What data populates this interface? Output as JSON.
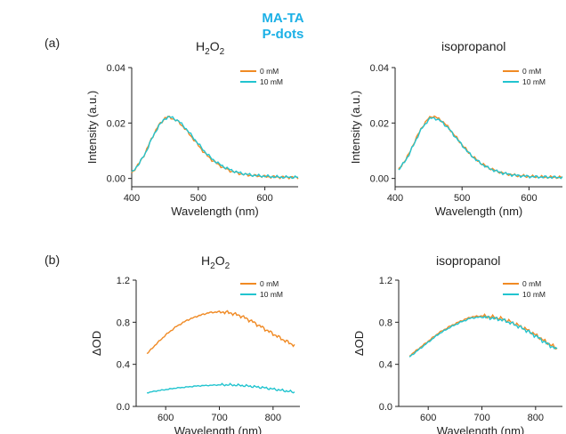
{
  "header": {
    "line1": "MA-TA",
    "line2": "P-dots"
  },
  "panel_labels": [
    "(a)",
    "(b)"
  ],
  "colors": {
    "orange": "#f08a24",
    "cyan": "#22c4cf",
    "header": "#1bb0e6",
    "green": "#a6d622"
  },
  "chart_data": [
    {
      "type": "line",
      "panel": "(a)",
      "title": "H2O2",
      "xlabel": "Wavelength (nm)",
      "ylabel": "Intensity (a.u.)",
      "xlim": [
        400,
        650
      ],
      "ylim": [
        -0.003,
        0.04
      ],
      "xticks": [
        400,
        500,
        600
      ],
      "xtick_labels": [
        "400",
        "500",
        "600"
      ],
      "yticks": [
        0.0,
        0.02,
        0.04
      ],
      "ytick_labels": [
        "0.00",
        "0.02",
        "0.04"
      ],
      "legend_position": "top-right",
      "x": [
        400,
        410,
        420,
        430,
        440,
        450,
        455,
        460,
        470,
        480,
        490,
        500,
        510,
        520,
        530,
        540,
        550,
        560,
        570,
        580,
        600,
        620,
        650
      ],
      "series": [
        {
          "name": "0 mM",
          "color": "orange",
          "values": [
            0.002,
            0.005,
            0.009,
            0.0145,
            0.019,
            0.0218,
            0.0222,
            0.0218,
            0.0205,
            0.018,
            0.015,
            0.012,
            0.009,
            0.0068,
            0.005,
            0.0036,
            0.0026,
            0.0019,
            0.0014,
            0.0011,
            0.0007,
            0.0005,
            0.0004
          ]
        },
        {
          "name": "10 mM",
          "color": "cyan",
          "values": [
            0.002,
            0.005,
            0.0088,
            0.0142,
            0.0188,
            0.0216,
            0.0222,
            0.022,
            0.0208,
            0.0184,
            0.0155,
            0.0125,
            0.0096,
            0.0072,
            0.0054,
            0.004,
            0.0029,
            0.0021,
            0.0016,
            0.0012,
            0.0008,
            0.0005,
            0.0004
          ]
        }
      ]
    },
    {
      "type": "line",
      "panel": "(a)",
      "title": "isopropanol",
      "xlabel": "Wavelength (nm)",
      "ylabel": "Intensity (a.u.)",
      "xlim": [
        400,
        650
      ],
      "ylim": [
        -0.003,
        0.04
      ],
      "xticks": [
        400,
        500,
        600
      ],
      "xtick_labels": [
        "400",
        "500",
        "600"
      ],
      "yticks": [
        0.0,
        0.02,
        0.04
      ],
      "ytick_labels": [
        "0.00",
        "0.02",
        "0.04"
      ],
      "legend_position": "top-right",
      "x": [
        405,
        410,
        420,
        430,
        440,
        450,
        455,
        460,
        470,
        480,
        490,
        500,
        510,
        520,
        530,
        540,
        550,
        560,
        570,
        580,
        600,
        620,
        650
      ],
      "series": [
        {
          "name": "0 mM",
          "color": "orange",
          "values": [
            0.003,
            0.0048,
            0.0085,
            0.0138,
            0.0185,
            0.0217,
            0.0225,
            0.0222,
            0.0208,
            0.0183,
            0.0152,
            0.0122,
            0.0093,
            0.007,
            0.0052,
            0.0038,
            0.0028,
            0.002,
            0.0015,
            0.0011,
            0.0007,
            0.0005,
            0.0004
          ]
        },
        {
          "name": "10 mM",
          "color": "cyan",
          "values": [
            0.003,
            0.0046,
            0.0082,
            0.0134,
            0.0181,
            0.0212,
            0.0219,
            0.0217,
            0.0204,
            0.018,
            0.015,
            0.012,
            0.0092,
            0.0069,
            0.0051,
            0.0037,
            0.0027,
            0.002,
            0.0015,
            0.0011,
            0.0007,
            0.0005,
            0.0004
          ]
        }
      ]
    },
    {
      "type": "line",
      "panel": "(b)",
      "title": "H2O2",
      "xlabel": "Wavelength (nm)",
      "ylabel": "ΔOD",
      "xlim": [
        545,
        850
      ],
      "ylim": [
        0.0,
        1.2
      ],
      "xticks": [
        600,
        700,
        800
      ],
      "xtick_labels": [
        "600",
        "700",
        "800"
      ],
      "yticks": [
        0.0,
        0.4,
        0.8,
        1.2
      ],
      "ytick_labels": [
        "0.0",
        "0.4",
        "0.8",
        "1.2"
      ],
      "legend_position": "top-right",
      "x": [
        565,
        580,
        600,
        620,
        640,
        660,
        680,
        700,
        720,
        740,
        760,
        780,
        800,
        820,
        840
      ],
      "series": [
        {
          "name": "0 mM",
          "color": "orange",
          "values": [
            0.5,
            0.58,
            0.68,
            0.76,
            0.82,
            0.86,
            0.89,
            0.9,
            0.89,
            0.86,
            0.81,
            0.75,
            0.69,
            0.63,
            0.58
          ]
        },
        {
          "name": "10 mM",
          "color": "cyan",
          "values": [
            0.13,
            0.145,
            0.16,
            0.175,
            0.185,
            0.195,
            0.2,
            0.205,
            0.205,
            0.2,
            0.19,
            0.18,
            0.165,
            0.15,
            0.135
          ]
        }
      ]
    },
    {
      "type": "line",
      "panel": "(b)",
      "title": "isopropanol",
      "xlabel": "Wavelength (nm)",
      "ylabel": "ΔOD",
      "xlim": [
        545,
        850
      ],
      "ylim": [
        0.0,
        1.2
      ],
      "xticks": [
        600,
        700,
        800
      ],
      "xtick_labels": [
        "600",
        "700",
        "800"
      ],
      "yticks": [
        0.0,
        0.4,
        0.8,
        1.2
      ],
      "ytick_labels": [
        "0.0",
        "0.4",
        "0.8",
        "1.2"
      ],
      "legend_position": "top-right",
      "x": [
        565,
        580,
        600,
        620,
        640,
        660,
        680,
        700,
        720,
        740,
        760,
        780,
        800,
        820,
        840
      ],
      "series": [
        {
          "name": "0 mM",
          "color": "orange",
          "values": [
            0.48,
            0.54,
            0.62,
            0.7,
            0.76,
            0.81,
            0.85,
            0.86,
            0.85,
            0.83,
            0.79,
            0.74,
            0.68,
            0.61,
            0.55
          ]
        },
        {
          "name": "10 mM",
          "color": "cyan",
          "values": [
            0.47,
            0.53,
            0.61,
            0.69,
            0.75,
            0.8,
            0.84,
            0.85,
            0.84,
            0.82,
            0.78,
            0.73,
            0.67,
            0.6,
            0.54
          ]
        }
      ]
    }
  ]
}
